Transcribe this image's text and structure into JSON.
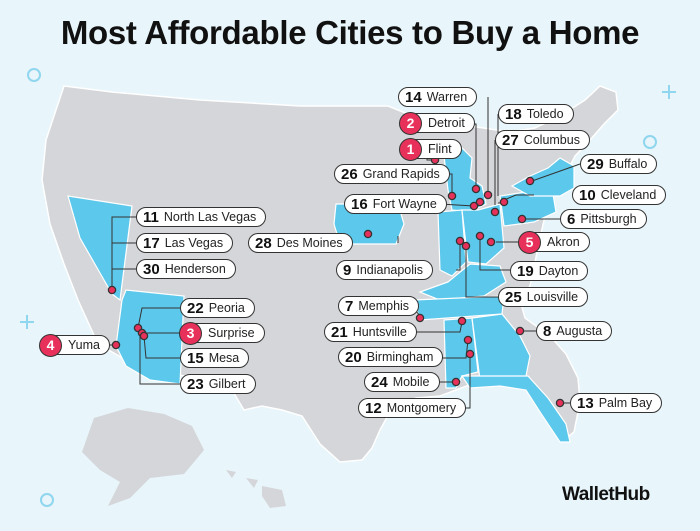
{
  "title": "Most Affordable Cities to Buy a Home",
  "brand": "WalletHub",
  "colors": {
    "highlight_state": "#5cc8ec",
    "base_state": "#d4d6d9",
    "marker": "#e8315a",
    "background": "#e8f5fa"
  },
  "cities": [
    {
      "rank": "1",
      "name": "Flint",
      "top5": true
    },
    {
      "rank": "2",
      "name": "Detroit",
      "top5": true
    },
    {
      "rank": "3",
      "name": "Surprise",
      "top5": true
    },
    {
      "rank": "4",
      "name": "Yuma",
      "top5": true
    },
    {
      "rank": "5",
      "name": "Akron",
      "top5": true
    },
    {
      "rank": "6",
      "name": "Pittsburgh"
    },
    {
      "rank": "7",
      "name": "Memphis"
    },
    {
      "rank": "8",
      "name": "Augusta"
    },
    {
      "rank": "9",
      "name": "Indianapolis"
    },
    {
      "rank": "10",
      "name": "Cleveland"
    },
    {
      "rank": "11",
      "name": "North Las Vegas"
    },
    {
      "rank": "13",
      "name": "Palm Bay"
    },
    {
      "rank": "14",
      "name": "Warren"
    },
    {
      "rank": "15",
      "name": "Mesa"
    },
    {
      "rank": "16",
      "name": "Fort Wayne"
    },
    {
      "rank": "17",
      "name": "Las Vegas"
    },
    {
      "rank": "18",
      "name": "Toledo"
    },
    {
      "rank": "19",
      "name": "Dayton"
    },
    {
      "rank": "20",
      "name": "Birmingham"
    },
    {
      "rank": "21",
      "name": "Huntsville"
    },
    {
      "rank": "22",
      "name": "Peoria"
    },
    {
      "rank": "23",
      "name": "Gilbert"
    },
    {
      "rank": "24",
      "name": "Mobile"
    },
    {
      "rank": "25",
      "name": "Louisville"
    },
    {
      "rank": "26",
      "name": "Grand Rapids"
    },
    {
      "rank": "27",
      "name": "Columbus"
    },
    {
      "rank": "28",
      "name": "Des Moines"
    },
    {
      "rank": "29",
      "name": "Buffalo"
    },
    {
      "rank": "30",
      "name": "Henderson"
    },
    {
      "rank": "12",
      "name": "Montgomery"
    }
  ]
}
